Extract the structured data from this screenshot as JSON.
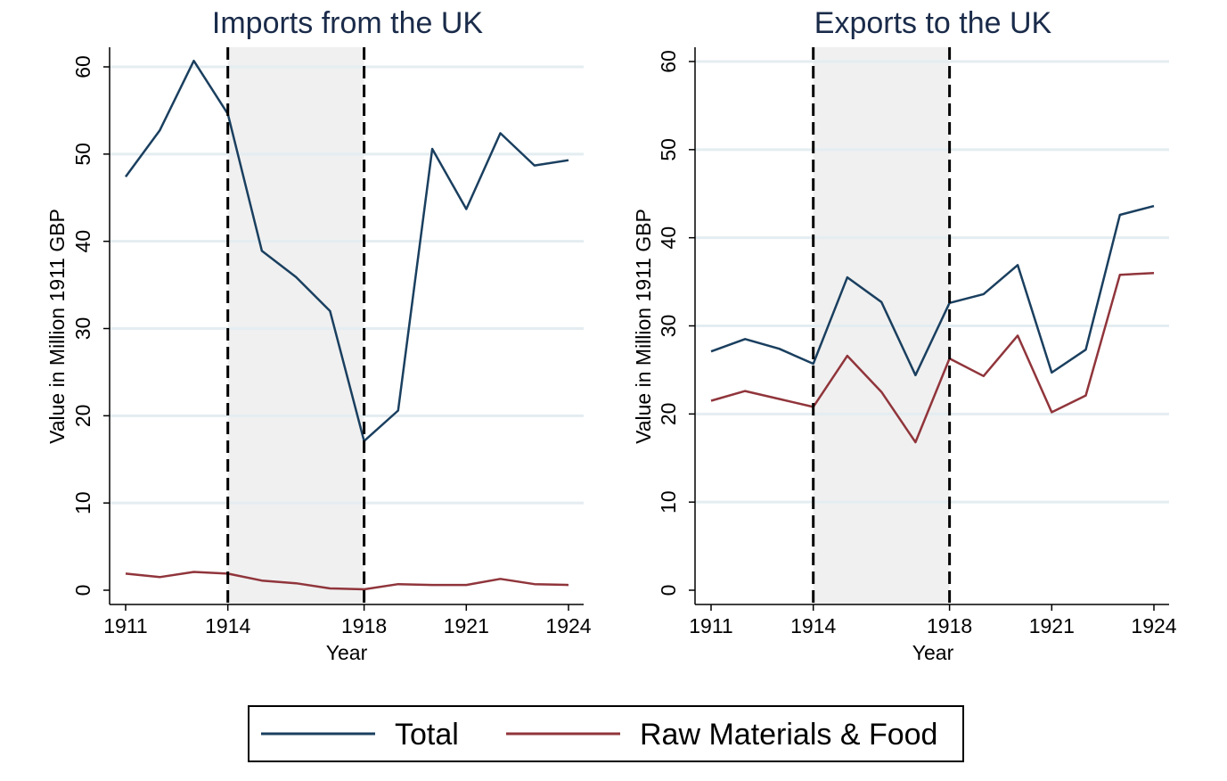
{
  "chart_data": [
    {
      "type": "line",
      "title": "Imports from the UK",
      "xlabel": "Year",
      "ylabel": "Value in Million 1911 GBP",
      "x": [
        1911,
        1912,
        1913,
        1914,
        1915,
        1916,
        1917,
        1918,
        1919,
        1920,
        1921,
        1922,
        1923,
        1924
      ],
      "xticks": [
        1911,
        1914,
        1918,
        1921,
        1924
      ],
      "yticks": [
        0,
        10,
        20,
        30,
        40,
        50,
        60
      ],
      "xlim": [
        1911,
        1924
      ],
      "ylim": [
        0,
        60
      ],
      "grid": "horizontal",
      "shaded_period": [
        1914,
        1918
      ],
      "dashed_lines": [
        1914,
        1918
      ],
      "series": [
        {
          "name": "Total",
          "color": "#1a3f5f",
          "values": [
            47.4,
            52.7,
            60.7,
            54.6,
            38.9,
            35.9,
            32.0,
            17.1,
            20.6,
            50.6,
            43.7,
            52.4,
            48.7,
            49.3
          ]
        },
        {
          "name": "Raw Materials & Food",
          "color": "#90353b",
          "values": [
            1.9,
            1.5,
            2.1,
            1.9,
            1.1,
            0.8,
            0.2,
            0.1,
            0.7,
            0.6,
            0.6,
            1.3,
            0.7,
            0.6
          ]
        }
      ]
    },
    {
      "type": "line",
      "title": "Exports to the UK",
      "xlabel": "Year",
      "ylabel": "Value in Million 1911 GBP",
      "x": [
        1911,
        1912,
        1913,
        1914,
        1915,
        1916,
        1917,
        1918,
        1919,
        1920,
        1921,
        1922,
        1923,
        1924
      ],
      "xticks": [
        1911,
        1914,
        1918,
        1921,
        1924
      ],
      "yticks": [
        0,
        10,
        20,
        30,
        40,
        50,
        60
      ],
      "xlim": [
        1911,
        1924
      ],
      "ylim": [
        0,
        60
      ],
      "grid": "horizontal",
      "shaded_period": [
        1914,
        1918
      ],
      "dashed_lines": [
        1914,
        1918
      ],
      "series": [
        {
          "name": "Total",
          "color": "#1a3f5f",
          "values": [
            27.1,
            28.5,
            27.4,
            25.7,
            35.5,
            32.7,
            24.4,
            32.6,
            33.6,
            36.9,
            24.7,
            27.3,
            42.6,
            43.6
          ]
        },
        {
          "name": "Raw Materials & Food",
          "color": "#90353b",
          "values": [
            21.5,
            22.6,
            21.7,
            20.8,
            26.6,
            22.5,
            16.8,
            26.3,
            24.3,
            28.9,
            20.2,
            22.1,
            35.8,
            36.0
          ]
        }
      ]
    }
  ],
  "legend": {
    "items": [
      {
        "label": "Total",
        "color": "#1a3f5f"
      },
      {
        "label": "Raw Materials & Food",
        "color": "#90353b"
      }
    ]
  }
}
